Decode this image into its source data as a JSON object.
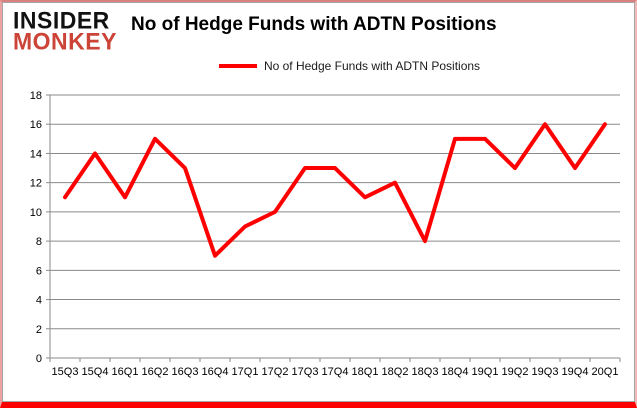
{
  "logo": {
    "line1": "INSIDER",
    "line2": "MONKEY"
  },
  "header": {
    "title": "No of Hedge Funds with ADTN Positions"
  },
  "legend": {
    "label": "No of Hedge Funds with ADTN Positions",
    "swatch_color": "#ff0000"
  },
  "chart_data": {
    "type": "line",
    "title": "No of Hedge Funds with ADTN Positions",
    "categories": [
      "15Q3",
      "15Q4",
      "16Q1",
      "16Q2",
      "16Q3",
      "16Q4",
      "17Q1",
      "17Q2",
      "17Q3",
      "17Q4",
      "18Q1",
      "18Q2",
      "18Q3",
      "18Q4",
      "19Q1",
      "19Q2",
      "19Q3",
      "19Q4",
      "20Q1"
    ],
    "series": [
      {
        "name": "No of Hedge Funds with ADTN Positions",
        "color": "#ff0000",
        "values": [
          11,
          14,
          11,
          15,
          13,
          7,
          9,
          10,
          13,
          13,
          11,
          12,
          8,
          15,
          15,
          13,
          16,
          13,
          16
        ]
      }
    ],
    "xlabel": "",
    "ylabel": "",
    "ylim": [
      0,
      18
    ],
    "ytick_step": 2,
    "grid": "horizontal",
    "legend_position": "top"
  },
  "colors": {
    "line": "#ff0000",
    "grid": "#8a8a8a",
    "axis": "#8a8a8a",
    "tick_label": "#000000",
    "logo_red": "#cb4437",
    "frame_red": "#ff0000"
  }
}
